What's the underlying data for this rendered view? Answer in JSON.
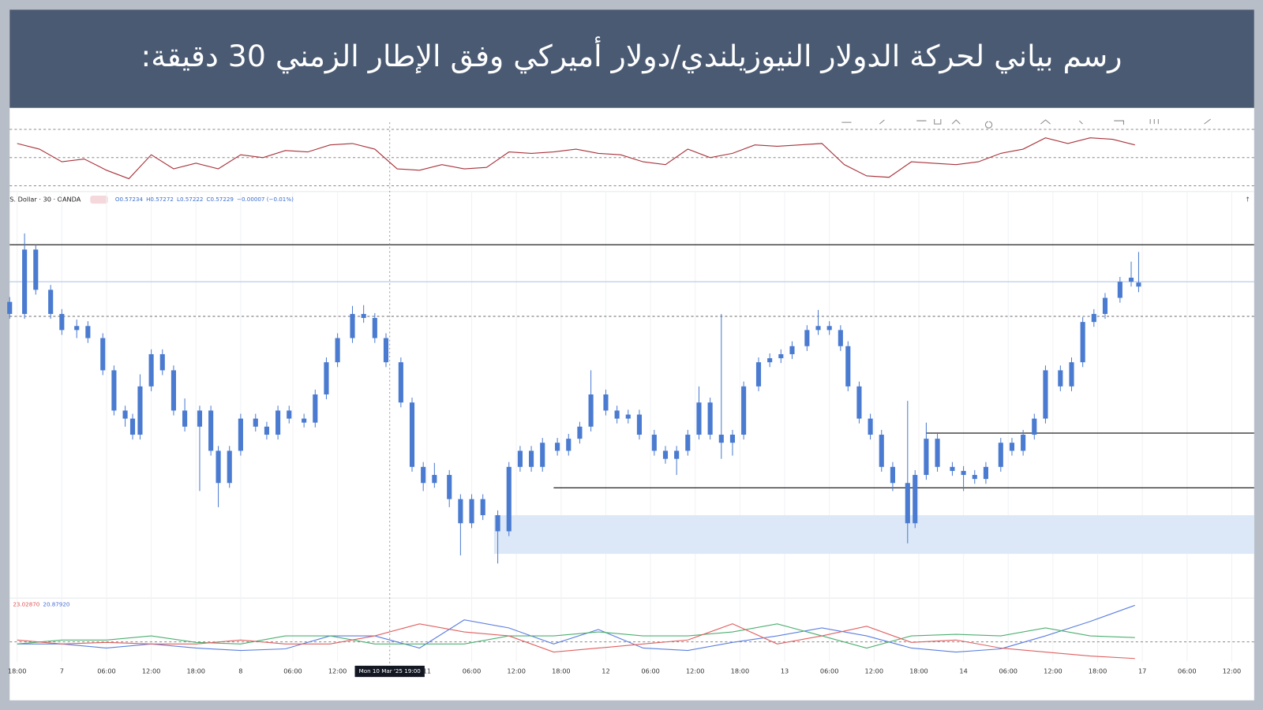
{
  "title": "رسم بياني لحركة الدولار النيوزيلندي/دولار أميركي وفق الإطار الزمني 30 دقيقة:",
  "chart_data": {
    "type": "candlestick",
    "symbol": "S. Dollar · 30 · OANDA",
    "legend_values": [
      "O0.57234",
      "H0.57272",
      "L0.57222",
      "C0.57229",
      "−0.00007 (−0.01%)"
    ],
    "color": "#4a7bd0",
    "xlim": [
      -2,
      332
    ],
    "ylim": [
      0.56845,
      0.5733
    ],
    "xticks": [
      {
        "value": 0,
        "label": "18:00"
      },
      {
        "value": 12,
        "label": "7"
      },
      {
        "value": 24,
        "label": "06:00"
      },
      {
        "value": 36,
        "label": "12:00"
      },
      {
        "value": 48,
        "label": "18:00"
      },
      {
        "value": 60,
        "label": "8"
      },
      {
        "value": 74,
        "label": "06:00"
      },
      {
        "value": 86,
        "label": "12:00"
      },
      {
        "value": 110,
        "label": "11"
      },
      {
        "value": 122,
        "label": "06:00"
      },
      {
        "value": 134,
        "label": "12:00"
      },
      {
        "value": 146,
        "label": "18:00"
      },
      {
        "value": 158,
        "label": "12"
      },
      {
        "value": 170,
        "label": "06:00"
      },
      {
        "value": 182,
        "label": "12:00"
      },
      {
        "value": 194,
        "label": "18:00"
      },
      {
        "value": 206,
        "label": "13"
      },
      {
        "value": 218,
        "label": "06:00"
      },
      {
        "value": 230,
        "label": "12:00"
      },
      {
        "value": 242,
        "label": "18:00"
      },
      {
        "value": 254,
        "label": "14"
      },
      {
        "value": 266,
        "label": "06:00"
      },
      {
        "value": 278,
        "label": "12:00"
      },
      {
        "value": 290,
        "label": "18:00"
      },
      {
        "value": 302,
        "label": "17"
      },
      {
        "value": 314,
        "label": "06:00"
      },
      {
        "value": 326,
        "label": "12:00"
      }
    ],
    "crosshair": {
      "x": 100,
      "label": "Mon 10 Mar '25  19:00"
    },
    "x": [
      -2,
      2,
      5,
      9,
      12,
      16,
      19,
      23,
      26,
      29,
      31,
      33,
      36,
      39,
      42,
      45,
      49,
      52,
      54,
      57,
      60,
      64,
      67,
      70,
      73,
      77,
      80,
      83,
      86,
      90,
      93,
      96,
      99,
      103,
      106,
      109,
      112,
      116,
      119,
      122,
      125,
      129,
      132,
      135,
      138,
      141,
      145,
      148,
      151,
      154,
      158,
      161,
      164,
      167,
      171,
      174,
      177,
      180,
      183,
      186,
      189,
      192,
      195,
      199,
      202,
      205,
      208,
      212,
      215,
      218,
      221,
      223,
      226,
      229,
      232,
      235,
      239,
      241,
      244,
      247,
      251,
      254,
      257,
      260,
      264,
      267,
      270,
      273,
      276,
      280,
      283,
      286,
      289,
      292,
      296,
      299,
      301
    ],
    "ohlc": [
      [
        0.5721,
        0.57216,
        0.57189,
        0.57195
      ],
      [
        0.57195,
        0.57295,
        0.57189,
        0.57275
      ],
      [
        0.57275,
        0.57281,
        0.57219,
        0.57225
      ],
      [
        0.57225,
        0.57231,
        0.57189,
        0.57195
      ],
      [
        0.57195,
        0.57201,
        0.57169,
        0.57175
      ],
      [
        0.57175,
        0.57188,
        0.57165,
        0.5718
      ],
      [
        0.5718,
        0.57186,
        0.57159,
        0.57165
      ],
      [
        0.57165,
        0.57171,
        0.57119,
        0.57125
      ],
      [
        0.57125,
        0.57131,
        0.57069,
        0.57075
      ],
      [
        0.57075,
        0.57081,
        0.57055,
        0.57065
      ],
      [
        0.57065,
        0.57071,
        0.57039,
        0.57045
      ],
      [
        0.57045,
        0.5712,
        0.57039,
        0.57105
      ],
      [
        0.57105,
        0.57151,
        0.57099,
        0.57145
      ],
      [
        0.57145,
        0.57151,
        0.57119,
        0.57125
      ],
      [
        0.57125,
        0.57131,
        0.57069,
        0.57075
      ],
      [
        0.57075,
        0.5709,
        0.57049,
        0.57055
      ],
      [
        0.57055,
        0.57081,
        0.56975,
        0.57075
      ],
      [
        0.57075,
        0.57081,
        0.57019,
        0.57025
      ],
      [
        0.57025,
        0.57031,
        0.56955,
        0.56985
      ],
      [
        0.56985,
        0.57031,
        0.56979,
        0.57025
      ],
      [
        0.57025,
        0.57071,
        0.57019,
        0.57065
      ],
      [
        0.57065,
        0.57071,
        0.57049,
        0.57055
      ],
      [
        0.57055,
        0.57061,
        0.57039,
        0.57045
      ],
      [
        0.57045,
        0.57081,
        0.57039,
        0.57075
      ],
      [
        0.57075,
        0.57081,
        0.57059,
        0.57065
      ],
      [
        0.57065,
        0.57071,
        0.57054,
        0.5706
      ],
      [
        0.5706,
        0.57101,
        0.57054,
        0.57095
      ],
      [
        0.57095,
        0.57141,
        0.57089,
        0.57135
      ],
      [
        0.57135,
        0.57171,
        0.57129,
        0.57165
      ],
      [
        0.57165,
        0.57205,
        0.57159,
        0.57195
      ],
      [
        0.57195,
        0.57206,
        0.57184,
        0.5719
      ],
      [
        0.5719,
        0.57196,
        0.57159,
        0.57165
      ],
      [
        0.57165,
        0.57171,
        0.57129,
        0.57135
      ],
      [
        0.57135,
        0.57141,
        0.57079,
        0.57085
      ],
      [
        0.57085,
        0.57091,
        0.56999,
        0.57005
      ],
      [
        0.57005,
        0.57011,
        0.56975,
        0.56985
      ],
      [
        0.56985,
        0.5701,
        0.56979,
        0.56995
      ],
      [
        0.56995,
        0.57001,
        0.56955,
        0.56965
      ],
      [
        0.56965,
        0.56971,
        0.56895,
        0.56935
      ],
      [
        0.56935,
        0.56971,
        0.56929,
        0.56965
      ],
      [
        0.56965,
        0.56971,
        0.56939,
        0.56945
      ],
      [
        0.56945,
        0.56951,
        0.56885,
        0.56925
      ],
      [
        0.56925,
        0.57011,
        0.56919,
        0.57005
      ],
      [
        0.57005,
        0.57031,
        0.56999,
        0.57025
      ],
      [
        0.57025,
        0.57031,
        0.56999,
        0.57005
      ],
      [
        0.57005,
        0.57041,
        0.56999,
        0.57035
      ],
      [
        0.57035,
        0.57041,
        0.57019,
        0.57025
      ],
      [
        0.57025,
        0.57046,
        0.57019,
        0.5704
      ],
      [
        0.5704,
        0.57061,
        0.57034,
        0.57055
      ],
      [
        0.57055,
        0.57125,
        0.57049,
        0.57095
      ],
      [
        0.57095,
        0.57101,
        0.57069,
        0.57075
      ],
      [
        0.57075,
        0.57081,
        0.57059,
        0.57065
      ],
      [
        0.57065,
        0.57076,
        0.57059,
        0.5707
      ],
      [
        0.5707,
        0.57076,
        0.57039,
        0.57045
      ],
      [
        0.57045,
        0.57051,
        0.57019,
        0.57025
      ],
      [
        0.57025,
        0.57031,
        0.57009,
        0.57015
      ],
      [
        0.57015,
        0.57031,
        0.56995,
        0.57025
      ],
      [
        0.57025,
        0.57051,
        0.57019,
        0.57045
      ],
      [
        0.57045,
        0.57105,
        0.57039,
        0.57085
      ],
      [
        0.57085,
        0.57091,
        0.57039,
        0.57045
      ],
      [
        0.57045,
        0.57195,
        0.57015,
        0.57035
      ],
      [
        0.57035,
        0.57051,
        0.57019,
        0.57045
      ],
      [
        0.57045,
        0.57111,
        0.57039,
        0.57105
      ],
      [
        0.57105,
        0.57141,
        0.57099,
        0.57135
      ],
      [
        0.57135,
        0.57146,
        0.57129,
        0.5714
      ],
      [
        0.5714,
        0.57151,
        0.57134,
        0.57145
      ],
      [
        0.57145,
        0.57161,
        0.57139,
        0.57155
      ],
      [
        0.57155,
        0.57181,
        0.57149,
        0.57175
      ],
      [
        0.57175,
        0.572,
        0.57169,
        0.5718
      ],
      [
        0.5718,
        0.57186,
        0.57169,
        0.57175
      ],
      [
        0.57175,
        0.57181,
        0.57149,
        0.57155
      ],
      [
        0.57155,
        0.57161,
        0.57099,
        0.57105
      ],
      [
        0.57105,
        0.57111,
        0.57059,
        0.57065
      ],
      [
        0.57065,
        0.57071,
        0.57039,
        0.57045
      ],
      [
        0.57045,
        0.57051,
        0.56999,
        0.57005
      ],
      [
        0.57005,
        0.57011,
        0.56975,
        0.56985
      ],
      [
        0.56985,
        0.57087,
        0.5691,
        0.56935
      ],
      [
        0.56935,
        0.57001,
        0.56929,
        0.56995
      ],
      [
        0.56995,
        0.5706,
        0.56989,
        0.5704
      ],
      [
        0.5704,
        0.57046,
        0.56999,
        0.57005
      ],
      [
        0.57005,
        0.57011,
        0.56994,
        0.57
      ],
      [
        0.57,
        0.57006,
        0.56975,
        0.56995
      ],
      [
        0.56995,
        0.57001,
        0.56984,
        0.5699
      ],
      [
        0.5699,
        0.57011,
        0.56984,
        0.57005
      ],
      [
        0.57005,
        0.57041,
        0.56999,
        0.57035
      ],
      [
        0.57035,
        0.57041,
        0.57019,
        0.57025
      ],
      [
        0.57025,
        0.57051,
        0.57019,
        0.57045
      ],
      [
        0.57045,
        0.57071,
        0.57039,
        0.57065
      ],
      [
        0.57065,
        0.57131,
        0.57059,
        0.57125
      ],
      [
        0.57125,
        0.57131,
        0.57099,
        0.57105
      ],
      [
        0.57105,
        0.57141,
        0.57099,
        0.57135
      ],
      [
        0.57135,
        0.57191,
        0.57129,
        0.57185
      ],
      [
        0.57185,
        0.57201,
        0.57179,
        0.57195
      ],
      [
        0.57195,
        0.57221,
        0.57189,
        0.57215
      ],
      [
        0.57215,
        0.57241,
        0.57209,
        0.57235
      ],
      [
        0.57235,
        0.5726,
        0.57229,
        0.5724
      ],
      [
        0.57234,
        0.57272,
        0.57222,
        0.57229
      ]
    ],
    "levels": [
      {
        "value": 0.57281,
        "x0": -2,
        "color": "#222222",
        "style": "solid"
      },
      {
        "value": 0.57235,
        "x0": -2,
        "color": "#b8cdea",
        "style": "solid"
      },
      {
        "value": 0.57192,
        "x0": -2,
        "color": "#888888",
        "style": "dashed"
      },
      {
        "value": 0.56979,
        "x0": 144,
        "color": "#222222",
        "style": "solid"
      },
      {
        "value": 0.57047,
        "x0": 244,
        "color": "#222222",
        "style": "solid"
      }
    ],
    "zone": [
      0.56945,
      0.56897
    ],
    "zone_x": 128,
    "zone_color": "#dce8f8",
    "rsi": {
      "color": "#a8323a",
      "ylim": [
        27,
        75
      ],
      "levels": [
        70,
        50,
        30
      ],
      "x": [
        0,
        6,
        12,
        18,
        24,
        30,
        36,
        42,
        48,
        54,
        60,
        66,
        72,
        78,
        84,
        90,
        96,
        102,
        108,
        114,
        120,
        126,
        132,
        138,
        144,
        150,
        156,
        162,
        168,
        174,
        180,
        186,
        192,
        198,
        204,
        210,
        216,
        222,
        228,
        234,
        240,
        246,
        252,
        258,
        264,
        270,
        276,
        282,
        288,
        294,
        300
      ],
      "values": [
        60,
        56,
        47,
        49,
        41,
        35,
        52,
        42,
        46,
        42,
        52,
        50,
        55,
        54,
        59,
        60,
        56,
        42,
        41,
        45,
        42,
        43,
        54,
        53,
        54,
        56,
        53,
        52,
        47,
        45,
        56,
        50,
        53,
        59,
        58,
        59,
        60,
        45,
        37,
        36,
        47,
        46,
        45,
        47,
        53,
        56,
        64,
        60,
        64,
        63,
        59
      ]
    },
    "dmi": {
      "ylim": [
        5,
        50
      ],
      "level": 20,
      "labels": [
        {
          "text": "23.02870",
          "color": "#e05555"
        },
        {
          "text": "20.87920",
          "color": "#4a6fd8"
        }
      ],
      "x": [
        0,
        12,
        24,
        36,
        48,
        60,
        72,
        84,
        96,
        108,
        120,
        132,
        144,
        156,
        168,
        180,
        192,
        204,
        216,
        228,
        240,
        252,
        264,
        276,
        288,
        300
      ],
      "series": [
        {
          "color": "#5b7fe0",
          "values": [
            18.4,
            18.4,
            15.3,
            18.4,
            15.3,
            13.5,
            14.7,
            24.5,
            24.5,
            15.3,
            36.6,
            30.5,
            18.4,
            29.3,
            15.3,
            13.5,
            19.6,
            24.5,
            30.5,
            24.5,
            15.3,
            12.3,
            14.7,
            24.5,
            35.4,
            47.6
          ]
        },
        {
          "color": "#4caf70",
          "values": [
            18.4,
            21.4,
            21.4,
            24.5,
            19.6,
            18.4,
            24.5,
            24.5,
            18.4,
            18.4,
            18.4,
            24.5,
            24.5,
            27.5,
            24.5,
            24.5,
            27.5,
            33.6,
            24.5,
            15.3,
            24.5,
            25.7,
            24.5,
            30.5,
            24.5,
            23.2
          ]
        },
        {
          "color": "#e06060",
          "values": [
            21.4,
            18.4,
            19.6,
            18.4,
            18.4,
            21.4,
            18.4,
            18.4,
            24.5,
            33.6,
            27.5,
            24.5,
            12.3,
            15.3,
            18.4,
            21.4,
            33.6,
            18.4,
            24.5,
            31.8,
            19.6,
            21.4,
            15.3,
            12.3,
            9.3,
            7.4
          ]
        }
      ]
    }
  }
}
